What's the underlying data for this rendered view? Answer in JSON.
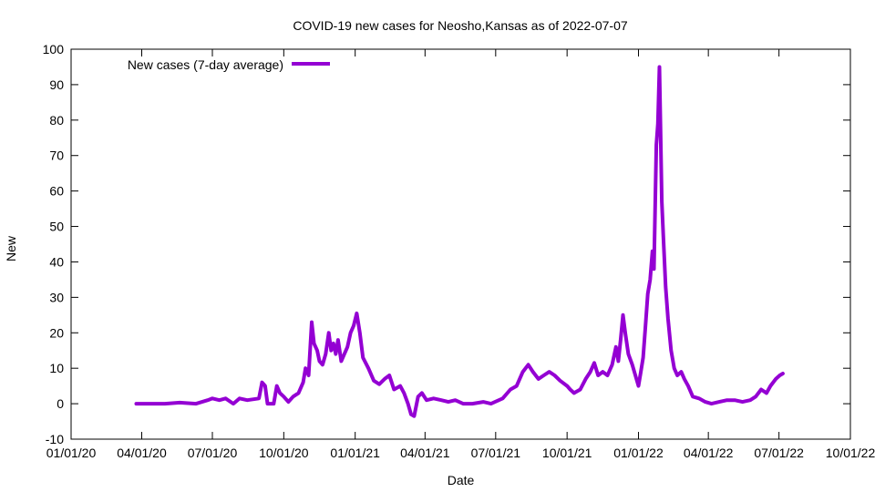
{
  "chart_data": {
    "type": "line",
    "title": "COVID-19 new cases for Neosho,Kansas as of 2022-07-07",
    "xlabel": "Date",
    "ylabel": "New",
    "ylim": [
      -10,
      100
    ],
    "xlim": [
      "2020-01-01",
      "2022-10-01"
    ],
    "yticks": [
      -10,
      0,
      10,
      20,
      30,
      40,
      50,
      60,
      70,
      80,
      90,
      100
    ],
    "xticks": [
      {
        "date": "2020-01-01",
        "label": "01/01/20"
      },
      {
        "date": "2020-04-01",
        "label": "04/01/20"
      },
      {
        "date": "2020-07-01",
        "label": "07/01/20"
      },
      {
        "date": "2020-10-01",
        "label": "10/01/20"
      },
      {
        "date": "2021-01-01",
        "label": "01/01/21"
      },
      {
        "date": "2021-04-01",
        "label": "04/01/21"
      },
      {
        "date": "2021-07-01",
        "label": "07/01/21"
      },
      {
        "date": "2021-10-01",
        "label": "10/01/21"
      },
      {
        "date": "2022-01-01",
        "label": "01/01/22"
      },
      {
        "date": "2022-04-01",
        "label": "04/01/22"
      },
      {
        "date": "2022-07-01",
        "label": "07/01/22"
      },
      {
        "date": "2022-10-01",
        "label": "10/01/22"
      }
    ],
    "grid": false,
    "legend_position": "top-left",
    "series": [
      {
        "name": "New cases (7-day average)",
        "color": "#9400d3",
        "points": [
          [
            "2020-03-25",
            0
          ],
          [
            "2020-04-10",
            0
          ],
          [
            "2020-05-01",
            0
          ],
          [
            "2020-05-20",
            0.3
          ],
          [
            "2020-06-10",
            0
          ],
          [
            "2020-06-25",
            1
          ],
          [
            "2020-07-01",
            1.5
          ],
          [
            "2020-07-10",
            1
          ],
          [
            "2020-07-18",
            1.5
          ],
          [
            "2020-07-28",
            0
          ],
          [
            "2020-08-05",
            1.5
          ],
          [
            "2020-08-15",
            1
          ],
          [
            "2020-08-30",
            1.5
          ],
          [
            "2020-09-03",
            6
          ],
          [
            "2020-09-07",
            5
          ],
          [
            "2020-09-10",
            0
          ],
          [
            "2020-09-18",
            0
          ],
          [
            "2020-09-22",
            5
          ],
          [
            "2020-09-26",
            3
          ],
          [
            "2020-10-01",
            2
          ],
          [
            "2020-10-07",
            0.5
          ],
          [
            "2020-10-13",
            2
          ],
          [
            "2020-10-20",
            3
          ],
          [
            "2020-10-26",
            6
          ],
          [
            "2020-10-29",
            10
          ],
          [
            "2020-11-02",
            8
          ],
          [
            "2020-11-06",
            23
          ],
          [
            "2020-11-09",
            17
          ],
          [
            "2020-11-13",
            15
          ],
          [
            "2020-11-16",
            12
          ],
          [
            "2020-11-20",
            11
          ],
          [
            "2020-11-24",
            14
          ],
          [
            "2020-11-28",
            20
          ],
          [
            "2020-12-01",
            15
          ],
          [
            "2020-12-04",
            17
          ],
          [
            "2020-12-07",
            14
          ],
          [
            "2020-12-10",
            18
          ],
          [
            "2020-12-14",
            12
          ],
          [
            "2020-12-18",
            14
          ],
          [
            "2020-12-22",
            16
          ],
          [
            "2020-12-26",
            20
          ],
          [
            "2020-12-30",
            22
          ],
          [
            "2021-01-03",
            25.5
          ],
          [
            "2021-01-07",
            20
          ],
          [
            "2021-01-11",
            13
          ],
          [
            "2021-01-18",
            10
          ],
          [
            "2021-01-25",
            6.5
          ],
          [
            "2021-02-01",
            5.5
          ],
          [
            "2021-02-08",
            7
          ],
          [
            "2021-02-14",
            8
          ],
          [
            "2021-02-20",
            4
          ],
          [
            "2021-02-28",
            5
          ],
          [
            "2021-03-05",
            3
          ],
          [
            "2021-03-10",
            0
          ],
          [
            "2021-03-14",
            -3
          ],
          [
            "2021-03-18",
            -3.5
          ],
          [
            "2021-03-23",
            2
          ],
          [
            "2021-03-28",
            3
          ],
          [
            "2021-04-03",
            1
          ],
          [
            "2021-04-12",
            1.5
          ],
          [
            "2021-04-22",
            1
          ],
          [
            "2021-05-01",
            0.5
          ],
          [
            "2021-05-10",
            1
          ],
          [
            "2021-05-20",
            0
          ],
          [
            "2021-06-01",
            0
          ],
          [
            "2021-06-15",
            0.5
          ],
          [
            "2021-06-25",
            0
          ],
          [
            "2021-07-10",
            1.5
          ],
          [
            "2021-07-20",
            4
          ],
          [
            "2021-07-28",
            5
          ],
          [
            "2021-08-05",
            9
          ],
          [
            "2021-08-12",
            11
          ],
          [
            "2021-08-18",
            9
          ],
          [
            "2021-08-25",
            7
          ],
          [
            "2021-09-01",
            8
          ],
          [
            "2021-09-08",
            9
          ],
          [
            "2021-09-15",
            8
          ],
          [
            "2021-09-22",
            6.5
          ],
          [
            "2021-10-01",
            5
          ],
          [
            "2021-10-05",
            4
          ],
          [
            "2021-10-10",
            3
          ],
          [
            "2021-10-18",
            4
          ],
          [
            "2021-10-25",
            7
          ],
          [
            "2021-10-31",
            9
          ],
          [
            "2021-11-05",
            11.5
          ],
          [
            "2021-11-10",
            8
          ],
          [
            "2021-11-16",
            9
          ],
          [
            "2021-11-22",
            8
          ],
          [
            "2021-11-28",
            11
          ],
          [
            "2021-12-03",
            16
          ],
          [
            "2021-12-06",
            12
          ],
          [
            "2021-12-09",
            18
          ],
          [
            "2021-12-12",
            25
          ],
          [
            "2021-12-15",
            20
          ],
          [
            "2021-12-19",
            14
          ],
          [
            "2021-12-24",
            11
          ],
          [
            "2021-12-28",
            8
          ],
          [
            "2022-01-01",
            5
          ],
          [
            "2022-01-04",
            9
          ],
          [
            "2022-01-07",
            13
          ],
          [
            "2022-01-10",
            22
          ],
          [
            "2022-01-13",
            31
          ],
          [
            "2022-01-16",
            35
          ],
          [
            "2022-01-19",
            43
          ],
          [
            "2022-01-21",
            38
          ],
          [
            "2022-01-24",
            73
          ],
          [
            "2022-01-26",
            79
          ],
          [
            "2022-01-28",
            95
          ],
          [
            "2022-01-31",
            57
          ],
          [
            "2022-02-02",
            47
          ],
          [
            "2022-02-05",
            33
          ],
          [
            "2022-02-08",
            24
          ],
          [
            "2022-02-12",
            15
          ],
          [
            "2022-02-16",
            10
          ],
          [
            "2022-02-20",
            8
          ],
          [
            "2022-02-25",
            9
          ],
          [
            "2022-03-01",
            7
          ],
          [
            "2022-03-06",
            5
          ],
          [
            "2022-03-12",
            2
          ],
          [
            "2022-03-20",
            1.5
          ],
          [
            "2022-03-28",
            0.5
          ],
          [
            "2022-04-05",
            0
          ],
          [
            "2022-04-15",
            0.5
          ],
          [
            "2022-04-25",
            1
          ],
          [
            "2022-05-05",
            1
          ],
          [
            "2022-05-15",
            0.5
          ],
          [
            "2022-05-25",
            1
          ],
          [
            "2022-06-01",
            2
          ],
          [
            "2022-06-08",
            4
          ],
          [
            "2022-06-15",
            3
          ],
          [
            "2022-06-20",
            5
          ],
          [
            "2022-06-27",
            7
          ],
          [
            "2022-07-02",
            8
          ],
          [
            "2022-07-06",
            8.5
          ]
        ]
      }
    ]
  }
}
